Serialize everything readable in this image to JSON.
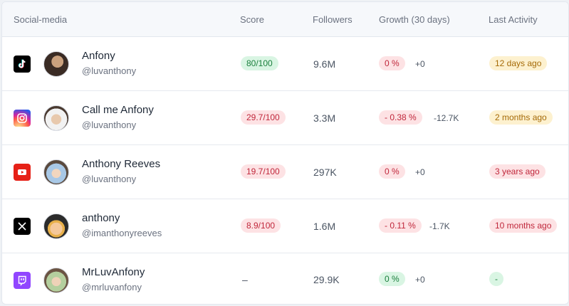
{
  "header": {
    "social_media": "Social-media",
    "score": "Score",
    "followers": "Followers",
    "growth": "Growth (30 days)",
    "last_activity": "Last Activity"
  },
  "rows": [
    {
      "platform": "tiktok-icon",
      "name": "Anfony",
      "handle": "@luvanthony",
      "score": "80/100",
      "score_color": "green",
      "followers": "9.6M",
      "growth_pct": "0 %",
      "growth_color": "red",
      "growth_delta": "+0",
      "last_activity": "12 days ago",
      "activity_color": "yellow"
    },
    {
      "platform": "instagram-icon",
      "name": "Call me Anfony",
      "handle": "@luvanthony",
      "score": "29.7/100",
      "score_color": "red",
      "followers": "3.3M",
      "growth_pct": "- 0.38 %",
      "growth_color": "red",
      "growth_delta": "-12.7K",
      "last_activity": "2 months ago",
      "activity_color": "yellow"
    },
    {
      "platform": "youtube-icon",
      "name": "Anthony Reeves",
      "handle": "@luvanthony",
      "score": "19.7/100",
      "score_color": "red",
      "followers": "297K",
      "growth_pct": "0 %",
      "growth_color": "red",
      "growth_delta": "+0",
      "last_activity": "3 years ago",
      "activity_color": "red"
    },
    {
      "platform": "x-icon",
      "name": "anthony",
      "handle": "@imanthonyreeves",
      "score": "8.9/100",
      "score_color": "red",
      "followers": "1.6M",
      "growth_pct": "- 0.11 %",
      "growth_color": "red",
      "growth_delta": "-1.7K",
      "last_activity": "10 months ago",
      "activity_color": "red"
    },
    {
      "platform": "twitch-icon",
      "name": "MrLuvAnfony",
      "handle": "@mrluvanfony",
      "score": "–",
      "score_color": "none",
      "followers": "29.9K",
      "growth_pct": "0 %",
      "growth_color": "green",
      "growth_delta": "+0",
      "last_activity": "-",
      "activity_color": "green"
    }
  ],
  "colors": {
    "tiktok": "#000000",
    "instagram": "#d6249f",
    "youtube": "#e62117",
    "x": "#000000",
    "twitch": "#9146ff"
  }
}
